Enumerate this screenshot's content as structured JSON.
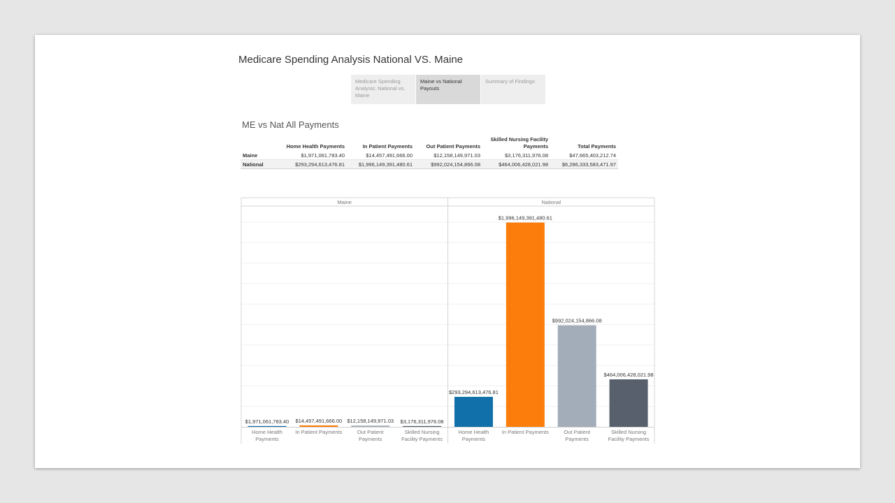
{
  "story": {
    "title": "Medicare Spending Analysis National VS. Maine"
  },
  "nav": [
    {
      "label": "Medicare Spending Analysis: National vs. Maine",
      "active": false
    },
    {
      "label": "Maine vs National Payouts",
      "active": true
    },
    {
      "label": "Summary of Findings",
      "active": false
    }
  ],
  "table": {
    "title": "ME vs Nat All Payments",
    "columns": [
      "Home Health Payments",
      "In Patient Payments",
      "Out Patient Payments",
      "Skilled Nursing Facility Payments",
      "Total Payments"
    ],
    "rows": [
      {
        "label": "Maine",
        "values": [
          "$1,971,061,783.40",
          "$14,457,491,666.00",
          "$12,158,149,971.03",
          "$3,176,311,976.08",
          "$47,665,403,212.74"
        ]
      },
      {
        "label": "National",
        "values": [
          "$293,294,613,476.81",
          "$1,996,149,391,480.61",
          "$992,024,154,866.08",
          "$464,006,428,021.98",
          "$6,286,333,583,471.97"
        ]
      }
    ]
  },
  "chart_data": {
    "type": "bar",
    "panels": [
      "Maine",
      "National"
    ],
    "categories": [
      "Home Health Payments",
      "In Patient Payments",
      "Out Patient Payments",
      "Skilled Nursing Facility Payments"
    ],
    "colors": [
      "#1170aa",
      "#fc7d0b",
      "#a3acb9",
      "#57606c"
    ],
    "series": [
      {
        "name": "Maine",
        "values": [
          1971061783.4,
          14457491666.0,
          12158149971.03,
          3176311976.08
        ],
        "labels": [
          "$1,971,061,783.40",
          "$14,457,491,666.00",
          "$12,158,149,971.03",
          "$3,176,311,976.08"
        ]
      },
      {
        "name": "National",
        "values": [
          293294613476.81,
          1996149391480.61,
          992024154866.08,
          464006428021.98
        ],
        "labels": [
          "$293,294,613,476.81",
          "$1,996,149,391,480.61",
          "$992,024,154,866.08",
          "$464,006,428,021.98"
        ]
      }
    ],
    "ylim": [
      0,
      2000000000000
    ],
    "grid": true,
    "category_labels": [
      [
        "Home Health",
        "Payments"
      ],
      [
        "In Patient Payments"
      ],
      [
        "Out Patient",
        "Payments"
      ],
      [
        "Skilled Nursing",
        "Facility Payments"
      ]
    ]
  }
}
